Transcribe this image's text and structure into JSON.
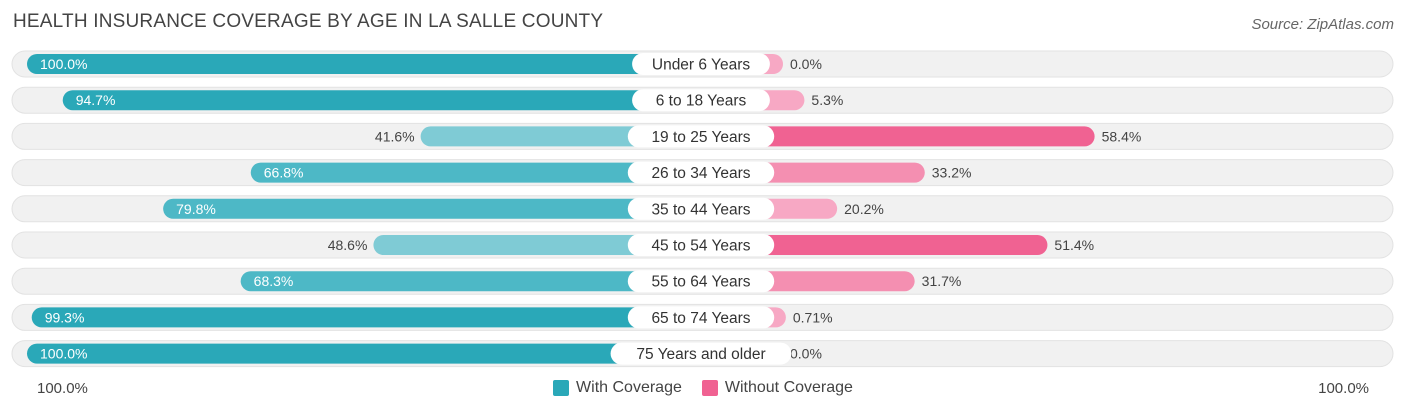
{
  "header": {
    "title": "HEALTH INSURANCE COVERAGE BY AGE IN LA SALLE COUNTY",
    "source": "Source: ZipAtlas.com"
  },
  "axis": {
    "left_label": "100.0%",
    "right_label": "100.0%"
  },
  "legend": [
    {
      "label": "With Coverage",
      "color": "#2aa8b8"
    },
    {
      "label": "Without Coverage",
      "color": "#f06292"
    }
  ],
  "chart_data": {
    "type": "bar",
    "orientation": "diverging-horizontal",
    "title": "HEALTH INSURANCE COVERAGE BY AGE IN LA SALLE COUNTY",
    "xlim": [
      -100,
      100
    ],
    "categories": [
      "Under 6 Years",
      "6 to 18 Years",
      "19 to 25 Years",
      "26 to 34 Years",
      "35 to 44 Years",
      "45 to 54 Years",
      "55 to 64 Years",
      "65 to 74 Years",
      "75 Years and older"
    ],
    "series": [
      {
        "name": "With Coverage",
        "values": [
          100.0,
          94.7,
          41.6,
          66.8,
          79.8,
          48.6,
          68.3,
          99.3,
          100.0
        ],
        "labels": [
          "100.0%",
          "94.7%",
          "41.6%",
          "66.8%",
          "79.8%",
          "48.6%",
          "68.3%",
          "99.3%",
          "100.0%"
        ]
      },
      {
        "name": "Without Coverage",
        "values": [
          0.0,
          5.3,
          58.4,
          33.2,
          20.2,
          51.4,
          31.7,
          0.71,
          0.0
        ],
        "labels": [
          "0.0%",
          "5.3%",
          "58.4%",
          "33.2%",
          "20.2%",
          "51.4%",
          "31.7%",
          "0.71%",
          "0.0%"
        ]
      }
    ]
  }
}
